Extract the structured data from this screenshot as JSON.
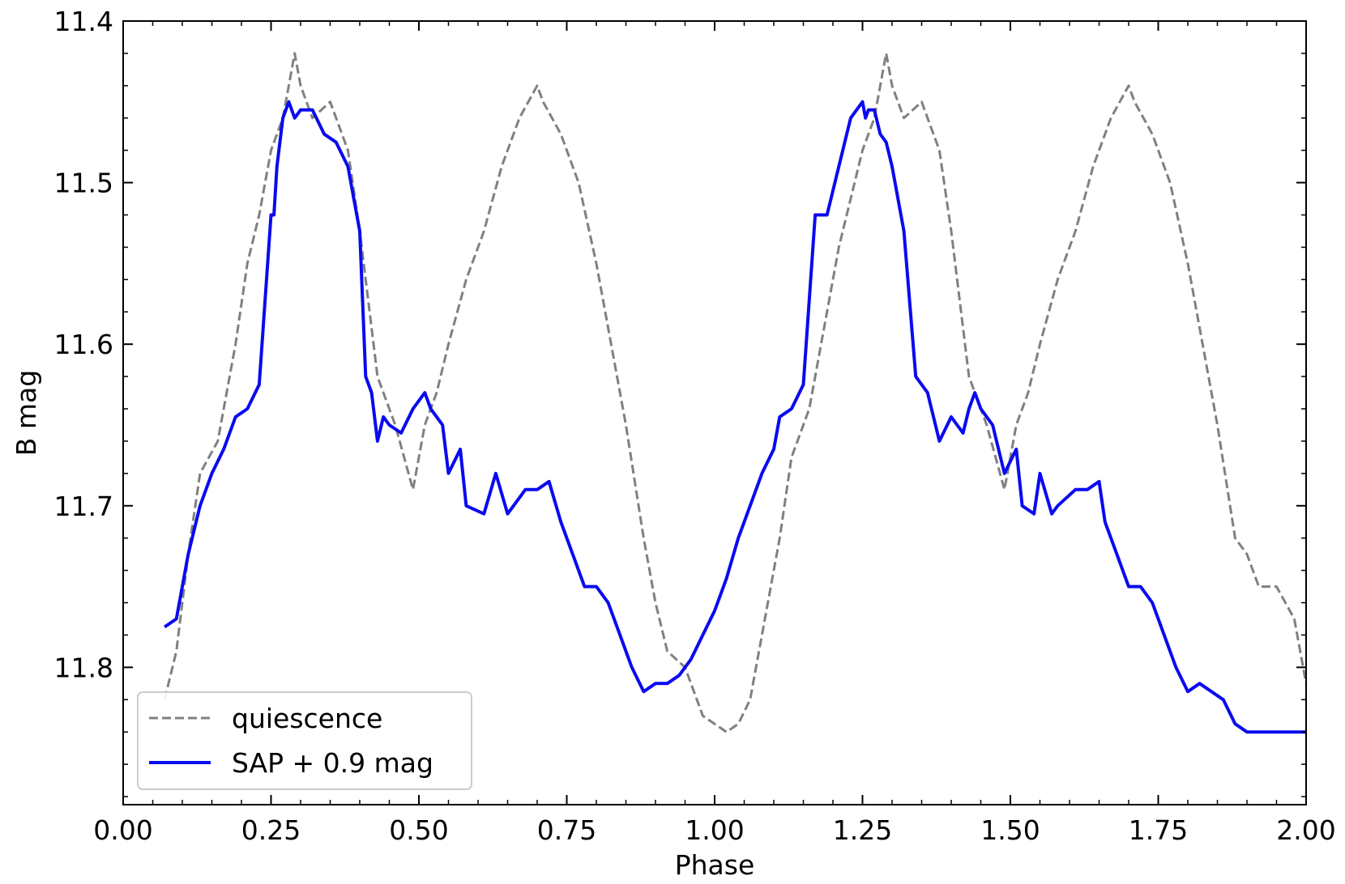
{
  "chart_data": {
    "type": "line",
    "title": "",
    "xlabel": "Phase",
    "ylabel": "B mag",
    "xlim": [
      0.0,
      2.0
    ],
    "ylim": [
      11.4,
      11.885
    ],
    "y_inverted": true,
    "x_ticks": [
      "0.00",
      "0.25",
      "0.50",
      "0.75",
      "1.00",
      "1.25",
      "1.50",
      "1.75",
      "2.00"
    ],
    "y_ticks": [
      "11.4",
      "11.5",
      "11.6",
      "11.7",
      "11.8"
    ],
    "grid": false,
    "legend_position": "lower-left",
    "series": [
      {
        "name": "quiescence",
        "color": "#808080",
        "style": "dashed",
        "x": [
          0.07,
          0.09,
          0.11,
          0.13,
          0.16,
          0.19,
          0.21,
          0.23,
          0.25,
          0.27,
          0.29,
          0.3,
          0.32,
          0.35,
          0.38,
          0.4,
          0.43,
          0.46,
          0.49,
          0.51,
          0.53,
          0.55,
          0.58,
          0.61,
          0.64,
          0.67,
          0.7,
          0.71,
          0.74,
          0.77,
          0.8,
          0.82,
          0.85,
          0.88,
          0.9,
          0.92,
          0.95,
          0.98,
          1.0,
          1.02,
          1.04,
          1.06,
          1.08,
          1.1,
          1.11,
          1.13,
          1.16,
          1.19,
          1.21,
          1.23,
          1.25,
          1.27,
          1.29,
          1.3,
          1.32,
          1.35,
          1.38,
          1.4,
          1.43,
          1.46,
          1.49,
          1.51,
          1.53,
          1.55,
          1.58,
          1.61,
          1.64,
          1.67,
          1.7,
          1.71,
          1.74,
          1.77,
          1.8,
          1.82,
          1.85,
          1.88,
          1.9,
          1.92,
          1.95,
          1.98,
          2.0
        ],
        "y": [
          11.82,
          11.79,
          11.73,
          11.68,
          11.66,
          11.6,
          11.55,
          11.52,
          11.48,
          11.46,
          11.42,
          11.44,
          11.46,
          11.45,
          11.48,
          11.53,
          11.62,
          11.65,
          11.69,
          11.65,
          11.63,
          11.6,
          11.56,
          11.53,
          11.49,
          11.46,
          11.44,
          11.45,
          11.47,
          11.5,
          11.55,
          11.59,
          11.65,
          11.72,
          11.76,
          11.79,
          11.8,
          11.83,
          11.835,
          11.84,
          11.835,
          11.82,
          11.78,
          11.74,
          11.72,
          11.67,
          11.64,
          11.58,
          11.54,
          11.51,
          11.48,
          11.46,
          11.42,
          11.44,
          11.46,
          11.45,
          11.48,
          11.53,
          11.62,
          11.65,
          11.69,
          11.65,
          11.63,
          11.6,
          11.56,
          11.53,
          11.49,
          11.46,
          11.44,
          11.45,
          11.47,
          11.5,
          11.55,
          11.59,
          11.65,
          11.72,
          11.73,
          11.75,
          11.75,
          11.77,
          11.81
        ]
      },
      {
        "name": "SAP + 0.9 mag",
        "color": "#0a0af0",
        "style": "solid",
        "x": [
          0.07,
          0.09,
          0.11,
          0.13,
          0.15,
          0.17,
          0.19,
          0.21,
          0.23,
          0.25,
          0.255,
          0.26,
          0.27,
          0.28,
          0.29,
          0.3,
          0.32,
          0.34,
          0.36,
          0.38,
          0.4,
          0.41,
          0.42,
          0.43,
          0.44,
          0.45,
          0.47,
          0.49,
          0.51,
          0.52,
          0.54,
          0.55,
          0.57,
          0.58,
          0.61,
          0.63,
          0.65,
          0.66,
          0.68,
          0.7,
          0.72,
          0.74,
          0.76,
          0.78,
          0.8,
          0.82,
          0.84,
          0.86,
          0.88,
          0.9,
          0.92,
          0.94,
          0.96,
          0.98,
          1.0,
          1.02,
          1.04,
          1.06,
          1.08,
          1.1,
          1.11,
          1.13,
          1.15,
          1.17,
          1.19,
          1.21,
          1.23,
          1.25,
          1.255,
          1.26,
          1.27,
          1.28,
          1.29,
          1.3,
          1.32,
          1.34,
          1.36,
          1.38,
          1.4,
          1.41,
          1.42,
          1.43,
          1.44,
          1.45,
          1.47,
          1.49,
          1.51,
          1.52,
          1.54,
          1.55,
          1.57,
          1.58,
          1.61,
          1.63,
          1.65,
          1.66,
          1.68,
          1.7,
          1.72,
          1.74,
          1.76,
          1.78,
          1.8,
          1.82,
          1.84,
          1.86,
          1.88,
          1.9,
          1.92,
          1.94,
          1.96,
          1.98,
          2.0
        ],
        "y": [
          11.775,
          11.77,
          11.73,
          11.7,
          11.68,
          11.665,
          11.645,
          11.64,
          11.625,
          11.52,
          11.52,
          11.49,
          11.46,
          11.45,
          11.46,
          11.455,
          11.455,
          11.47,
          11.475,
          11.49,
          11.53,
          11.62,
          11.63,
          11.66,
          11.645,
          11.65,
          11.655,
          11.64,
          11.63,
          11.64,
          11.65,
          11.68,
          11.665,
          11.7,
          11.705,
          11.68,
          11.705,
          11.7,
          11.69,
          11.69,
          11.685,
          11.71,
          11.73,
          11.75,
          11.75,
          11.76,
          11.78,
          11.8,
          11.815,
          11.81,
          11.81,
          11.805,
          11.795,
          11.78,
          11.765,
          11.745,
          11.72,
          11.7,
          11.68,
          11.665,
          11.645,
          11.64,
          11.625,
          11.52,
          11.52,
          11.49,
          11.46,
          11.45,
          11.46,
          11.455,
          11.455,
          11.47,
          11.475,
          11.49,
          11.53,
          11.62,
          11.63,
          11.66,
          11.645,
          11.65,
          11.655,
          11.64,
          11.63,
          11.64,
          11.65,
          11.68,
          11.665,
          11.7,
          11.705,
          11.68,
          11.705,
          11.7,
          11.69,
          11.69,
          11.685,
          11.71,
          11.73,
          11.75,
          11.75,
          11.76,
          11.78,
          11.8,
          11.815,
          11.81,
          11.815,
          11.82,
          11.835,
          11.84,
          11.84,
          11.84,
          11.84,
          11.84,
          11.84
        ]
      }
    ]
  }
}
